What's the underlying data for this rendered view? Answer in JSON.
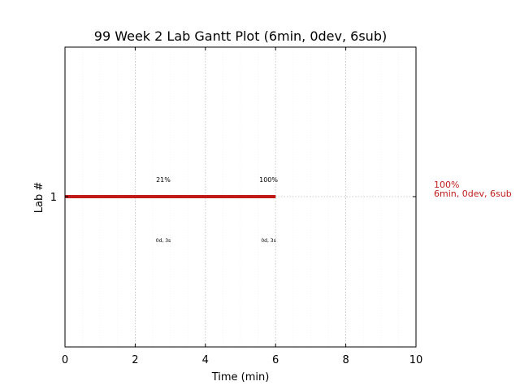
{
  "chart_data": {
    "type": "gantt",
    "title": "99 Week 2 Lab Gantt Plot (6min, 0dev, 6sub)",
    "xlabel": "Time (min)",
    "ylabel": "Lab #",
    "xlim": [
      0,
      10
    ],
    "x_ticks": [
      "0",
      "2",
      "4",
      "6",
      "8",
      "10"
    ],
    "y_ticks": [
      "1"
    ],
    "grid": true,
    "bar_color": "#c01a1a",
    "bars": [
      {
        "lab": "1",
        "start": 0,
        "end": 6
      }
    ],
    "annotations": [
      {
        "x": 2.8,
        "above": "21%",
        "below": "0d, 3s"
      },
      {
        "x": 5.8,
        "above": "100%",
        "below": "0d, 3s"
      }
    ],
    "side_annotation": {
      "line1": "100%",
      "line2": "6min, 0dev, 6sub",
      "color": "#c01a1a"
    }
  }
}
